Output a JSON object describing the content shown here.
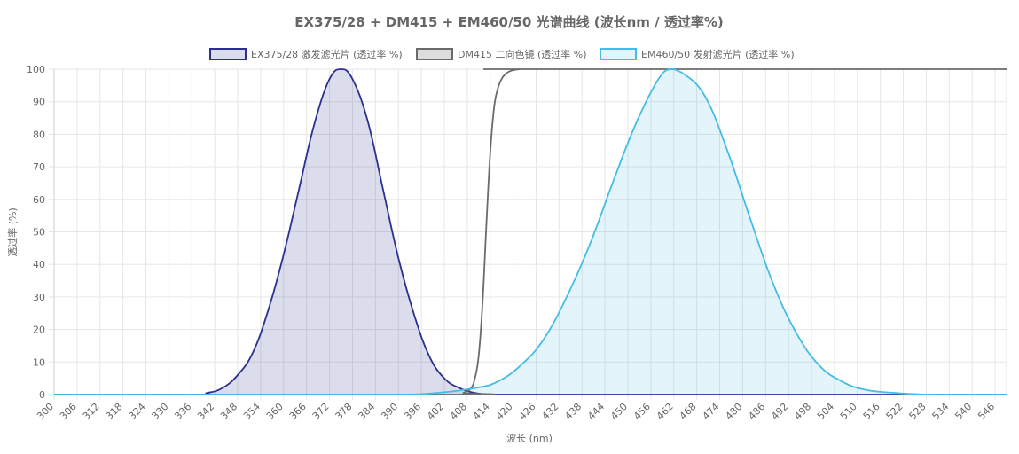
{
  "chart_data": {
    "type": "area",
    "title": "EX375/28 + DM415 + EM460/50 光谱曲线 (波长nm / 透过率%)",
    "xlabel": "波长 (nm)",
    "ylabel": "透过率 (%)",
    "xlim": [
      300,
      549
    ],
    "ylim": [
      0,
      100
    ],
    "x_ticks": [
      300,
      306,
      312,
      318,
      324,
      330,
      336,
      342,
      348,
      354,
      360,
      366,
      372,
      378,
      384,
      390,
      396,
      402,
      408,
      414,
      420,
      426,
      432,
      438,
      444,
      450,
      456,
      462,
      468,
      474,
      480,
      486,
      492,
      498,
      504,
      510,
      516,
      522,
      528,
      534,
      540,
      546
    ],
    "y_ticks": [
      0,
      10,
      20,
      30,
      40,
      50,
      60,
      70,
      80,
      90,
      100
    ],
    "grid": true,
    "legend_position": "top",
    "series": [
      {
        "name": "EX375/28 激发滤光片 (透过率 %)",
        "color": "#2b3090",
        "fill": "rgba(43,48,144,0.17)",
        "x": [
          300,
          336,
          340,
          344,
          348,
          352,
          356,
          360,
          364,
          368,
          372,
          375,
          378,
          382,
          386,
          390,
          394,
          398,
          402,
          406,
          410,
          414,
          420,
          549
        ],
        "y": [
          0,
          0,
          0.5,
          2,
          6,
          13,
          26,
          43,
          63,
          83,
          97,
          100,
          97,
          84,
          63,
          42,
          25,
          12,
          5,
          2,
          0.5,
          0,
          0,
          0
        ]
      },
      {
        "name": "DM415 二向色镜 (透过率 %)",
        "color": "#6b6b6b",
        "fill": "none",
        "x": [
          300,
          405,
          407,
          409,
          410,
          411,
          412,
          413,
          414,
          415,
          416,
          417,
          418,
          419,
          420,
          422,
          424,
          549
        ],
        "y": [
          0,
          0,
          0.5,
          2,
          5,
          12,
          28,
          52,
          74,
          88,
          94,
          97,
          98.5,
          99.3,
          99.7,
          100,
          100,
          100
        ],
        "note_color": "#dddddd"
      },
      {
        "name": "EM460/50 发射滤光片 (透过率 %)",
        "color": "#45bce6",
        "fill": "rgba(69,188,230,0.15)",
        "x": [
          300,
          370,
          390,
          400,
          410,
          416,
          422,
          428,
          434,
          440,
          446,
          452,
          458,
          461,
          464,
          470,
          476,
          482,
          488,
          494,
          500,
          506,
          512,
          520,
          530,
          549
        ],
        "y": [
          0,
          0,
          0,
          0.5,
          2,
          4,
          9,
          17,
          30,
          46,
          65,
          83,
          97,
          100,
          99,
          92,
          75,
          54,
          34,
          19,
          9,
          4,
          1.5,
          0.5,
          0,
          0
        ]
      }
    ]
  }
}
